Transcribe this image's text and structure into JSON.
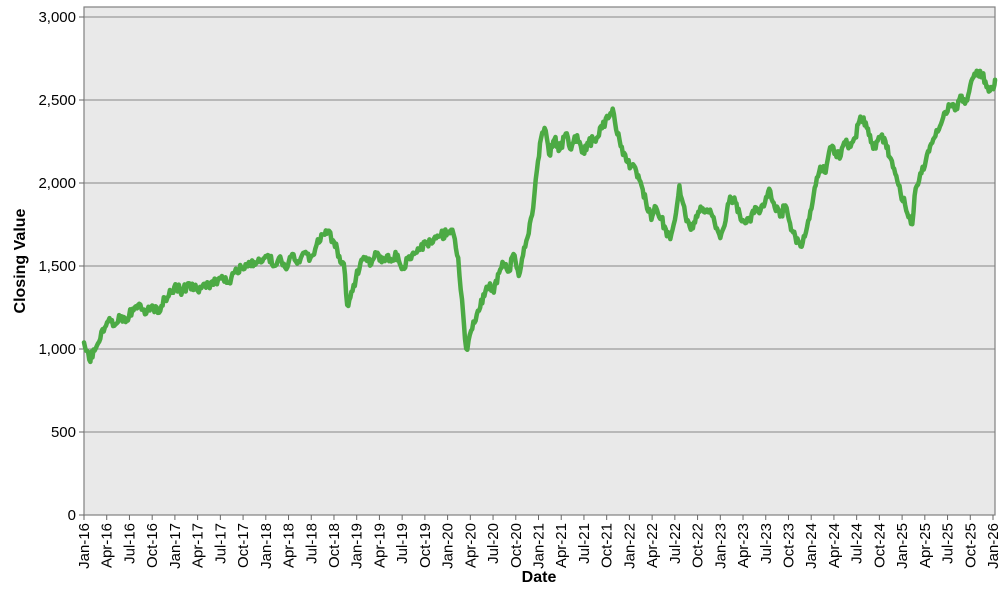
{
  "chart_data": {
    "type": "line",
    "title": "",
    "xlabel": "Date",
    "ylabel": "Closing Value",
    "legend": "none",
    "grid": "horizontal",
    "plot_bg": "#e9e9e9",
    "grid_color": "#888888",
    "border_color": "#808080",
    "tick_color": "#666666",
    "text_color": "#000000",
    "line_color": "#4caa44",
    "line_width": 4.5,
    "ylim": [
      0,
      3000
    ],
    "y_ticks": [
      0,
      500,
      1000,
      1500,
      2000,
      2500,
      3000
    ],
    "y_tick_labels": [
      "0",
      "500",
      "1,000",
      "1,500",
      "2,000",
      "2,500",
      "3,000"
    ],
    "x_months_per_tick": 3,
    "xlim_months": [
      0,
      120.5
    ],
    "x_tick_labels": [
      "Jan-16",
      "Apr-16",
      "Jul-16",
      "Oct-16",
      "Jan-17",
      "Apr-17",
      "Jul-17",
      "Oct-17",
      "Jan-18",
      "Apr-18",
      "Jul-18",
      "Oct-18",
      "Jan-19",
      "Apr-19",
      "Jul-19",
      "Oct-19",
      "Jan-20",
      "Apr-20",
      "Jul-20",
      "Oct-20",
      "Jan-21",
      "Apr-21",
      "Jul-21",
      "Oct-21",
      "Jan-22",
      "Apr-22",
      "Jul-22",
      "Oct-22",
      "Jan-23",
      "Apr-23",
      "Jul-23",
      "Oct-23",
      "Jan-24",
      "Apr-24",
      "Jul-24",
      "Oct-24",
      "Jan-25",
      "Apr-25",
      "Jul-25",
      "Oct-25",
      "Jan-26"
    ],
    "noise": {
      "amplitude": 28,
      "step_months": 0.15,
      "seed": 20160104
    },
    "series": [
      {
        "name": "Closing Value",
        "points_month_value": [
          [
            0,
            1040
          ],
          [
            0.7,
            935
          ],
          [
            1.4,
            990
          ],
          [
            2.3,
            1105
          ],
          [
            3.2,
            1168
          ],
          [
            4,
            1140
          ],
          [
            4.8,
            1188
          ],
          [
            5.5,
            1162
          ],
          [
            6.4,
            1242
          ],
          [
            7.3,
            1272
          ],
          [
            8.2,
            1212
          ],
          [
            9,
            1262
          ],
          [
            9.9,
            1218
          ],
          [
            10.7,
            1308
          ],
          [
            11.5,
            1338
          ],
          [
            12.2,
            1372
          ],
          [
            13,
            1350
          ],
          [
            14,
            1392
          ],
          [
            15,
            1352
          ],
          [
            15.8,
            1392
          ],
          [
            16.6,
            1366
          ],
          [
            17.4,
            1410
          ],
          [
            18.2,
            1440
          ],
          [
            19,
            1400
          ],
          [
            19.9,
            1462
          ],
          [
            20.9,
            1492
          ],
          [
            21.9,
            1505
          ],
          [
            22.9,
            1522
          ],
          [
            23.7,
            1545
          ],
          [
            24.4,
            1562
          ],
          [
            25.1,
            1500
          ],
          [
            25.9,
            1558
          ],
          [
            26.7,
            1480
          ],
          [
            27.5,
            1572
          ],
          [
            28.3,
            1530
          ],
          [
            29.1,
            1582
          ],
          [
            29.9,
            1550
          ],
          [
            30.7,
            1628
          ],
          [
            31.5,
            1690
          ],
          [
            32.2,
            1712
          ],
          [
            33,
            1645
          ],
          [
            33.7,
            1560
          ],
          [
            34.3,
            1515
          ],
          [
            34.75,
            1265
          ],
          [
            35.3,
            1345
          ],
          [
            35.9,
            1425
          ],
          [
            36.5,
            1520
          ],
          [
            37.2,
            1552
          ],
          [
            37.9,
            1508
          ],
          [
            38.6,
            1578
          ],
          [
            39.3,
            1522
          ],
          [
            40,
            1562
          ],
          [
            40.7,
            1540
          ],
          [
            41.4,
            1568
          ],
          [
            42.1,
            1492
          ],
          [
            42.9,
            1558
          ],
          [
            43.6,
            1572
          ],
          [
            44.4,
            1598
          ],
          [
            45.3,
            1642
          ],
          [
            46.2,
            1665
          ],
          [
            47.1,
            1682
          ],
          [
            48,
            1700
          ],
          [
            48.8,
            1688
          ],
          [
            49.4,
            1550
          ],
          [
            49.9,
            1300
          ],
          [
            50.3,
            1060
          ],
          [
            50.6,
            995
          ],
          [
            51.1,
            1110
          ],
          [
            51.7,
            1170
          ],
          [
            52.3,
            1250
          ],
          [
            53,
            1350
          ],
          [
            53.6,
            1395
          ],
          [
            54.1,
            1340
          ],
          [
            54.8,
            1458
          ],
          [
            55.4,
            1512
          ],
          [
            56.1,
            1468
          ],
          [
            56.7,
            1572
          ],
          [
            57.4,
            1440
          ],
          [
            58.1,
            1612
          ],
          [
            58.7,
            1695
          ],
          [
            59.3,
            1850
          ],
          [
            59.8,
            2080
          ],
          [
            60.2,
            2240
          ],
          [
            60.8,
            2332
          ],
          [
            61.4,
            2172
          ],
          [
            62.1,
            2262
          ],
          [
            62.8,
            2202
          ],
          [
            63.6,
            2298
          ],
          [
            64.3,
            2202
          ],
          [
            65.1,
            2288
          ],
          [
            65.9,
            2182
          ],
          [
            66.6,
            2242
          ],
          [
            67.4,
            2262
          ],
          [
            68.4,
            2330
          ],
          [
            69.2,
            2390
          ],
          [
            69.8,
            2448
          ],
          [
            70.4,
            2292
          ],
          [
            71,
            2218
          ],
          [
            71.6,
            2132
          ],
          [
            72.2,
            2098
          ],
          [
            72.9,
            2072
          ],
          [
            73.6,
            1985
          ],
          [
            74.2,
            1882
          ],
          [
            74.9,
            1778
          ],
          [
            75.5,
            1855
          ],
          [
            76.2,
            1782
          ],
          [
            76.8,
            1722
          ],
          [
            77.4,
            1662
          ],
          [
            78,
            1778
          ],
          [
            78.6,
            1985
          ],
          [
            79.4,
            1802
          ],
          [
            80.1,
            1718
          ],
          [
            80.8,
            1802
          ],
          [
            81.4,
            1858
          ],
          [
            82.1,
            1838
          ],
          [
            82.8,
            1818
          ],
          [
            83.4,
            1728
          ],
          [
            84,
            1668
          ],
          [
            84.7,
            1772
          ],
          [
            85.3,
            1918
          ],
          [
            86,
            1882
          ],
          [
            86.7,
            1778
          ],
          [
            87.3,
            1758
          ],
          [
            88,
            1768
          ],
          [
            88.6,
            1855
          ],
          [
            89.3,
            1832
          ],
          [
            89.9,
            1882
          ],
          [
            90.6,
            1952
          ],
          [
            91.2,
            1852
          ],
          [
            91.9,
            1798
          ],
          [
            92.6,
            1865
          ],
          [
            93.2,
            1758
          ],
          [
            93.9,
            1678
          ],
          [
            94.6,
            1618
          ],
          [
            95.3,
            1702
          ],
          [
            95.9,
            1832
          ],
          [
            96.6,
            1985
          ],
          [
            97.2,
            2098
          ],
          [
            97.9,
            2062
          ],
          [
            98.5,
            2215
          ],
          [
            99.2,
            2185
          ],
          [
            99.9,
            2162
          ],
          [
            100.5,
            2248
          ],
          [
            101.2,
            2218
          ],
          [
            101.8,
            2272
          ],
          [
            102.5,
            2400
          ],
          [
            103.2,
            2365
          ],
          [
            103.9,
            2245
          ],
          [
            104.5,
            2208
          ],
          [
            105.2,
            2282
          ],
          [
            105.8,
            2252
          ],
          [
            106.5,
            2148
          ],
          [
            107.1,
            2055
          ],
          [
            107.8,
            1938
          ],
          [
            108.4,
            1868
          ],
          [
            109,
            1800
          ],
          [
            109.35,
            1752
          ],
          [
            109.8,
            1968
          ],
          [
            110.4,
            2058
          ],
          [
            111,
            2102
          ],
          [
            111.7,
            2222
          ],
          [
            112.4,
            2282
          ],
          [
            113,
            2342
          ],
          [
            113.7,
            2428
          ],
          [
            114.3,
            2468
          ],
          [
            115,
            2438
          ],
          [
            115.7,
            2525
          ],
          [
            116.3,
            2478
          ],
          [
            117,
            2588
          ],
          [
            117.7,
            2648
          ],
          [
            118.3,
            2675
          ],
          [
            119,
            2612
          ],
          [
            119.6,
            2556
          ],
          [
            120.2,
            2592
          ],
          [
            120.5,
            2615
          ]
        ]
      }
    ]
  }
}
